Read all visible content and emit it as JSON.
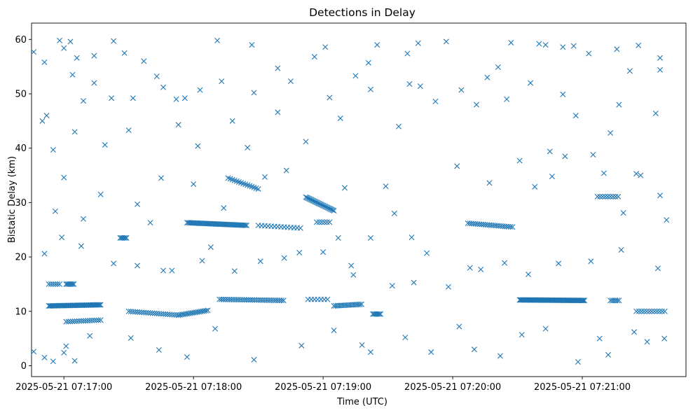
{
  "chart_data": {
    "type": "scatter",
    "title": "Detections in Delay",
    "xlabel": "Time (UTC)",
    "ylabel": "Bistatic Delay (km)",
    "marker": "x",
    "color": "#1f77b4",
    "grid": false,
    "x_time_range": [
      "2025-05-21 07:16:45",
      "2025-05-21 07:21:48"
    ],
    "ylim": [
      -2,
      63
    ],
    "x_ticks": [
      "2025-05-21 07:17:00",
      "2025-05-21 07:18:00",
      "2025-05-21 07:19:00",
      "2025-05-21 07:20:00",
      "2025-05-21 07:21:00"
    ],
    "y_ticks": [
      "0",
      "10",
      "20",
      "30",
      "40",
      "50",
      "60"
    ],
    "tracks": [
      {
        "name": "",
        "start": "2025-05-21 07:16:53",
        "end": "2025-05-21 07:17:17",
        "delay_start": 11.0,
        "delay_end": 11.2,
        "step_s": 0.5
      },
      {
        "name": "",
        "start": "2025-05-21 07:17:01",
        "end": "2025-05-21 07:17:17",
        "delay_start": 8.1,
        "delay_end": 8.4,
        "step_s": 1.0
      },
      {
        "name": "",
        "start": "2025-05-21 07:17:30",
        "end": "2025-05-21 07:17:53",
        "delay_start": 10.0,
        "delay_end": 9.3,
        "step_s": 1.0
      },
      {
        "name": "",
        "start": "2025-05-21 07:17:53",
        "end": "2025-05-21 07:18:07",
        "delay_start": 9.3,
        "delay_end": 10.2,
        "step_s": 0.8
      },
      {
        "name": "",
        "start": "2025-05-21 07:17:57",
        "end": "2025-05-21 07:18:25",
        "delay_start": 26.3,
        "delay_end": 25.8,
        "step_s": 0.6
      },
      {
        "name": "",
        "start": "2025-05-21 07:18:12",
        "end": "2025-05-21 07:18:42",
        "delay_start": 12.2,
        "delay_end": 12.0,
        "step_s": 0.9
      },
      {
        "name": "",
        "start": "2025-05-21 07:18:16",
        "end": "2025-05-21 07:18:30",
        "delay_start": 34.5,
        "delay_end": 32.5,
        "step_s": 1.0
      },
      {
        "name": "",
        "start": "2025-05-21 07:18:30",
        "end": "2025-05-21 07:18:50",
        "delay_start": 25.8,
        "delay_end": 25.3,
        "step_s": 1.5
      },
      {
        "name": "",
        "start": "2025-05-21 07:18:52",
        "end": "2025-05-21 07:19:05",
        "delay_start": 31.0,
        "delay_end": 28.5,
        "step_s": 0.5
      },
      {
        "name": "",
        "start": "2025-05-21 07:18:53",
        "end": "2025-05-21 07:19:03",
        "delay_start": 12.2,
        "delay_end": 12.2,
        "step_s": 1.5
      },
      {
        "name": "",
        "start": "2025-05-21 07:19:05",
        "end": "2025-05-21 07:19:18",
        "delay_start": 11.0,
        "delay_end": 11.3,
        "step_s": 0.8
      },
      {
        "name": "",
        "start": "2025-05-21 07:19:23",
        "end": "2025-05-21 07:19:27",
        "delay_start": 9.5,
        "delay_end": 9.5,
        "step_s": 0.6
      },
      {
        "name": "",
        "start": "2025-05-21 07:20:07",
        "end": "2025-05-21 07:20:28",
        "delay_start": 26.2,
        "delay_end": 25.5,
        "step_s": 0.9
      },
      {
        "name": "",
        "start": "2025-05-21 07:20:31",
        "end": "2025-05-21 07:21:01",
        "delay_start": 12.1,
        "delay_end": 12.0,
        "step_s": 0.4
      },
      {
        "name": "",
        "start": "2025-05-21 07:21:07",
        "end": "2025-05-21 07:21:17",
        "delay_start": 31.1,
        "delay_end": 31.1,
        "step_s": 1.2
      },
      {
        "name": "",
        "start": "2025-05-21 07:21:13",
        "end": "2025-05-21 07:21:17",
        "delay_start": 12.0,
        "delay_end": 12.0,
        "step_s": 0.8
      },
      {
        "name": "",
        "start": "2025-05-21 07:21:25",
        "end": "2025-05-21 07:21:39",
        "delay_start": 10.0,
        "delay_end": 10.0,
        "step_s": 1.2
      },
      {
        "name": "",
        "start": "2025-05-21 07:16:53",
        "end": "2025-05-21 07:16:58",
        "delay_start": 15.0,
        "delay_end": 15.0,
        "step_s": 1.0
      },
      {
        "name": "",
        "start": "2025-05-21 07:17:01",
        "end": "2025-05-21 07:17:05",
        "delay_start": 15.0,
        "delay_end": 15.0,
        "step_s": 0.6
      },
      {
        "name": "",
        "start": "2025-05-21 07:17:26",
        "end": "2025-05-21 07:17:29",
        "delay_start": 23.5,
        "delay_end": 23.5,
        "step_s": 0.6
      },
      {
        "name": "",
        "start": "2025-05-21 07:18:57",
        "end": "2025-05-21 07:19:04",
        "delay_start": 26.4,
        "delay_end": 26.4,
        "step_s": 1.2
      }
    ],
    "scattered_points": [
      [
        "2025-05-21 07:16:46",
        57.7
      ],
      [
        "2025-05-21 07:16:51",
        55.8
      ],
      [
        "2025-05-21 07:16:52",
        46.0
      ],
      [
        "2025-05-21 07:16:55",
        39.7
      ],
      [
        "2025-05-21 07:16:58",
        59.8
      ],
      [
        "2025-05-21 07:17:00",
        58.4
      ],
      [
        "2025-05-21 07:17:03",
        59.6
      ],
      [
        "2025-05-21 07:17:04",
        53.5
      ],
      [
        "2025-05-21 07:17:06",
        56.6
      ],
      [
        "2025-05-21 07:17:14",
        57.0
      ],
      [
        "2025-05-21 07:17:14",
        52.0
      ],
      [
        "2025-05-21 07:17:23",
        59.7
      ],
      [
        "2025-05-21 07:17:28",
        57.5
      ],
      [
        "2025-05-21 07:17:37",
        56.0
      ],
      [
        "2025-05-21 07:17:52",
        49.0
      ],
      [
        "2025-05-21 07:18:03",
        50.7
      ],
      [
        "2025-05-21 07:18:11",
        59.8
      ],
      [
        "2025-05-21 07:18:13",
        52.3
      ],
      [
        "2025-05-21 07:18:27",
        59.0
      ],
      [
        "2025-05-21 07:18:39",
        54.7
      ],
      [
        "2025-05-21 07:18:56",
        56.8
      ],
      [
        "2025-05-21 07:19:01",
        58.6
      ],
      [
        "2025-05-21 07:19:25",
        59.0
      ],
      [
        "2025-05-21 07:19:39",
        57.4
      ],
      [
        "2025-05-21 07:19:44",
        59.3
      ],
      [
        "2025-05-21 07:19:57",
        59.6
      ],
      [
        "2025-05-21 07:20:27",
        59.4
      ],
      [
        "2025-05-21 07:20:40",
        59.2
      ],
      [
        "2025-05-21 07:20:43",
        59.0
      ],
      [
        "2025-05-21 07:20:51",
        58.6
      ],
      [
        "2025-05-21 07:20:56",
        58.8
      ],
      [
        "2025-05-21 07:21:03",
        57.4
      ],
      [
        "2025-05-21 07:21:16",
        58.2
      ],
      [
        "2025-05-21 07:21:26",
        58.9
      ],
      [
        "2025-05-21 07:21:36",
        56.6
      ],
      [
        "2025-05-21 07:16:50",
        45.0
      ],
      [
        "2025-05-21 07:17:05",
        43.0
      ],
      [
        "2025-05-21 07:17:09",
        48.7
      ],
      [
        "2025-05-21 07:17:19",
        40.6
      ],
      [
        "2025-05-21 07:17:22",
        49.2
      ],
      [
        "2025-05-21 07:17:30",
        43.3
      ],
      [
        "2025-05-21 07:17:32",
        49.2
      ],
      [
        "2025-05-21 07:17:43",
        53.2
      ],
      [
        "2025-05-21 07:17:46",
        51.2
      ],
      [
        "2025-05-21 07:17:53",
        44.3
      ],
      [
        "2025-05-21 07:17:56",
        49.2
      ],
      [
        "2025-05-21 07:18:02",
        40.4
      ],
      [
        "2025-05-21 07:18:18",
        45.0
      ],
      [
        "2025-05-21 07:18:25",
        40.1
      ],
      [
        "2025-05-21 07:18:28",
        50.2
      ],
      [
        "2025-05-21 07:18:39",
        46.6
      ],
      [
        "2025-05-21 07:18:45",
        52.3
      ],
      [
        "2025-05-21 07:18:52",
        41.2
      ],
      [
        "2025-05-21 07:19:03",
        49.3
      ],
      [
        "2025-05-21 07:19:08",
        45.5
      ],
      [
        "2025-05-21 07:19:15",
        53.3
      ],
      [
        "2025-05-21 07:19:21",
        55.7
      ],
      [
        "2025-05-21 07:19:22",
        50.8
      ],
      [
        "2025-05-21 07:19:35",
        44.0
      ],
      [
        "2025-05-21 07:19:40",
        51.8
      ],
      [
        "2025-05-21 07:19:45",
        51.4
      ],
      [
        "2025-05-21 07:19:52",
        48.6
      ],
      [
        "2025-05-21 07:20:04",
        50.7
      ],
      [
        "2025-05-21 07:20:11",
        48.0
      ],
      [
        "2025-05-21 07:20:16",
        53.0
      ],
      [
        "2025-05-21 07:20:21",
        54.9
      ],
      [
        "2025-05-21 07:20:25",
        49.0
      ],
      [
        "2025-05-21 07:20:36",
        52.0
      ],
      [
        "2025-05-21 07:20:45",
        39.4
      ],
      [
        "2025-05-21 07:20:51",
        49.9
      ],
      [
        "2025-05-21 07:20:57",
        46.0
      ],
      [
        "2025-05-21 07:21:13",
        42.8
      ],
      [
        "2025-05-21 07:21:17",
        48.0
      ],
      [
        "2025-05-21 07:21:22",
        54.2
      ],
      [
        "2025-05-21 07:21:27",
        35.0
      ],
      [
        "2025-05-21 07:21:36",
        54.4
      ],
      [
        "2025-05-21 07:21:34",
        46.4
      ],
      [
        "2025-05-21 07:16:56",
        28.4
      ],
      [
        "2025-05-21 07:17:00",
        34.6
      ],
      [
        "2025-05-21 07:17:09",
        27.0
      ],
      [
        "2025-05-21 07:17:17",
        31.5
      ],
      [
        "2025-05-21 07:17:34",
        29.7
      ],
      [
        "2025-05-21 07:17:40",
        26.3
      ],
      [
        "2025-05-21 07:17:45",
        34.5
      ],
      [
        "2025-05-21 07:17:50",
        17.5
      ],
      [
        "2025-05-21 07:18:00",
        33.4
      ],
      [
        "2025-05-21 07:18:08",
        21.8
      ],
      [
        "2025-05-21 07:18:14",
        29.0
      ],
      [
        "2025-05-21 07:18:33",
        34.7
      ],
      [
        "2025-05-21 07:18:43",
        35.9
      ],
      [
        "2025-05-21 07:18:49",
        20.8
      ],
      [
        "2025-05-21 07:19:07",
        23.5
      ],
      [
        "2025-05-21 07:19:10",
        32.7
      ],
      [
        "2025-05-21 07:19:13",
        18.4
      ],
      [
        "2025-05-21 07:19:22",
        23.5
      ],
      [
        "2025-05-21 07:19:29",
        33.0
      ],
      [
        "2025-05-21 07:19:33",
        28.0
      ],
      [
        "2025-05-21 07:19:41",
        23.6
      ],
      [
        "2025-05-21 07:19:48",
        20.7
      ],
      [
        "2025-05-21 07:20:02",
        36.7
      ],
      [
        "2025-05-21 07:20:08",
        18.0
      ],
      [
        "2025-05-21 07:20:17",
        33.6
      ],
      [
        "2025-05-21 07:20:31",
        37.7
      ],
      [
        "2025-05-21 07:20:38",
        32.9
      ],
      [
        "2025-05-21 07:20:46",
        34.8
      ],
      [
        "2025-05-21 07:20:52",
        38.5
      ],
      [
        "2025-05-21 07:21:05",
        38.8
      ],
      [
        "2025-05-21 07:21:10",
        35.4
      ],
      [
        "2025-05-21 07:21:19",
        28.1
      ],
      [
        "2025-05-21 07:21:25",
        35.3
      ],
      [
        "2025-05-21 07:21:36",
        31.3
      ],
      [
        "2025-05-21 07:21:39",
        26.8
      ],
      [
        "2025-05-21 07:16:46",
        2.6
      ],
      [
        "2025-05-21 07:16:51",
        1.5
      ],
      [
        "2025-05-21 07:16:55",
        0.8
      ],
      [
        "2025-05-21 07:17:00",
        2.4
      ],
      [
        "2025-05-21 07:17:01",
        3.6
      ],
      [
        "2025-05-21 07:17:05",
        0.9
      ],
      [
        "2025-05-21 07:17:12",
        5.5
      ],
      [
        "2025-05-21 07:17:31",
        5.1
      ],
      [
        "2025-05-21 07:17:44",
        2.9
      ],
      [
        "2025-05-21 07:17:57",
        1.6
      ],
      [
        "2025-05-21 07:18:10",
        6.8
      ],
      [
        "2025-05-21 07:18:28",
        1.1
      ],
      [
        "2025-05-21 07:18:50",
        3.7
      ],
      [
        "2025-05-21 07:19:05",
        6.5
      ],
      [
        "2025-05-21 07:19:18",
        3.8
      ],
      [
        "2025-05-21 07:19:22",
        2.5
      ],
      [
        "2025-05-21 07:19:38",
        5.2
      ],
      [
        "2025-05-21 07:19:50",
        2.5
      ],
      [
        "2025-05-21 07:20:03",
        7.2
      ],
      [
        "2025-05-21 07:20:10",
        3.0
      ],
      [
        "2025-05-21 07:20:22",
        1.8
      ],
      [
        "2025-05-21 07:20:32",
        5.7
      ],
      [
        "2025-05-21 07:20:43",
        6.8
      ],
      [
        "2025-05-21 07:20:58",
        0.7
      ],
      [
        "2025-05-21 07:21:08",
        5.0
      ],
      [
        "2025-05-21 07:21:12",
        2.0
      ],
      [
        "2025-05-21 07:21:24",
        6.2
      ],
      [
        "2025-05-21 07:21:30",
        4.4
      ],
      [
        "2025-05-21 07:21:38",
        5.0
      ],
      [
        "2025-05-21 07:16:51",
        20.6
      ],
      [
        "2025-05-21 07:16:59",
        23.6
      ],
      [
        "2025-05-21 07:17:08",
        22.0
      ],
      [
        "2025-05-21 07:17:23",
        18.8
      ],
      [
        "2025-05-21 07:17:34",
        18.4
      ],
      [
        "2025-05-21 07:17:46",
        17.5
      ],
      [
        "2025-05-21 07:18:04",
        19.3
      ],
      [
        "2025-05-21 07:18:19",
        17.4
      ],
      [
        "2025-05-21 07:18:31",
        19.2
      ],
      [
        "2025-05-21 07:18:42",
        19.8
      ],
      [
        "2025-05-21 07:19:00",
        20.9
      ],
      [
        "2025-05-21 07:19:14",
        16.7
      ],
      [
        "2025-05-21 07:19:32",
        14.7
      ],
      [
        "2025-05-21 07:19:42",
        15.3
      ],
      [
        "2025-05-21 07:19:58",
        14.5
      ],
      [
        "2025-05-21 07:20:13",
        17.7
      ],
      [
        "2025-05-21 07:20:24",
        18.9
      ],
      [
        "2025-05-21 07:20:35",
        16.8
      ],
      [
        "2025-05-21 07:20:49",
        18.8
      ],
      [
        "2025-05-21 07:21:04",
        19.2
      ],
      [
        "2025-05-21 07:21:18",
        21.3
      ],
      [
        "2025-05-21 07:21:35",
        17.9
      ]
    ]
  }
}
